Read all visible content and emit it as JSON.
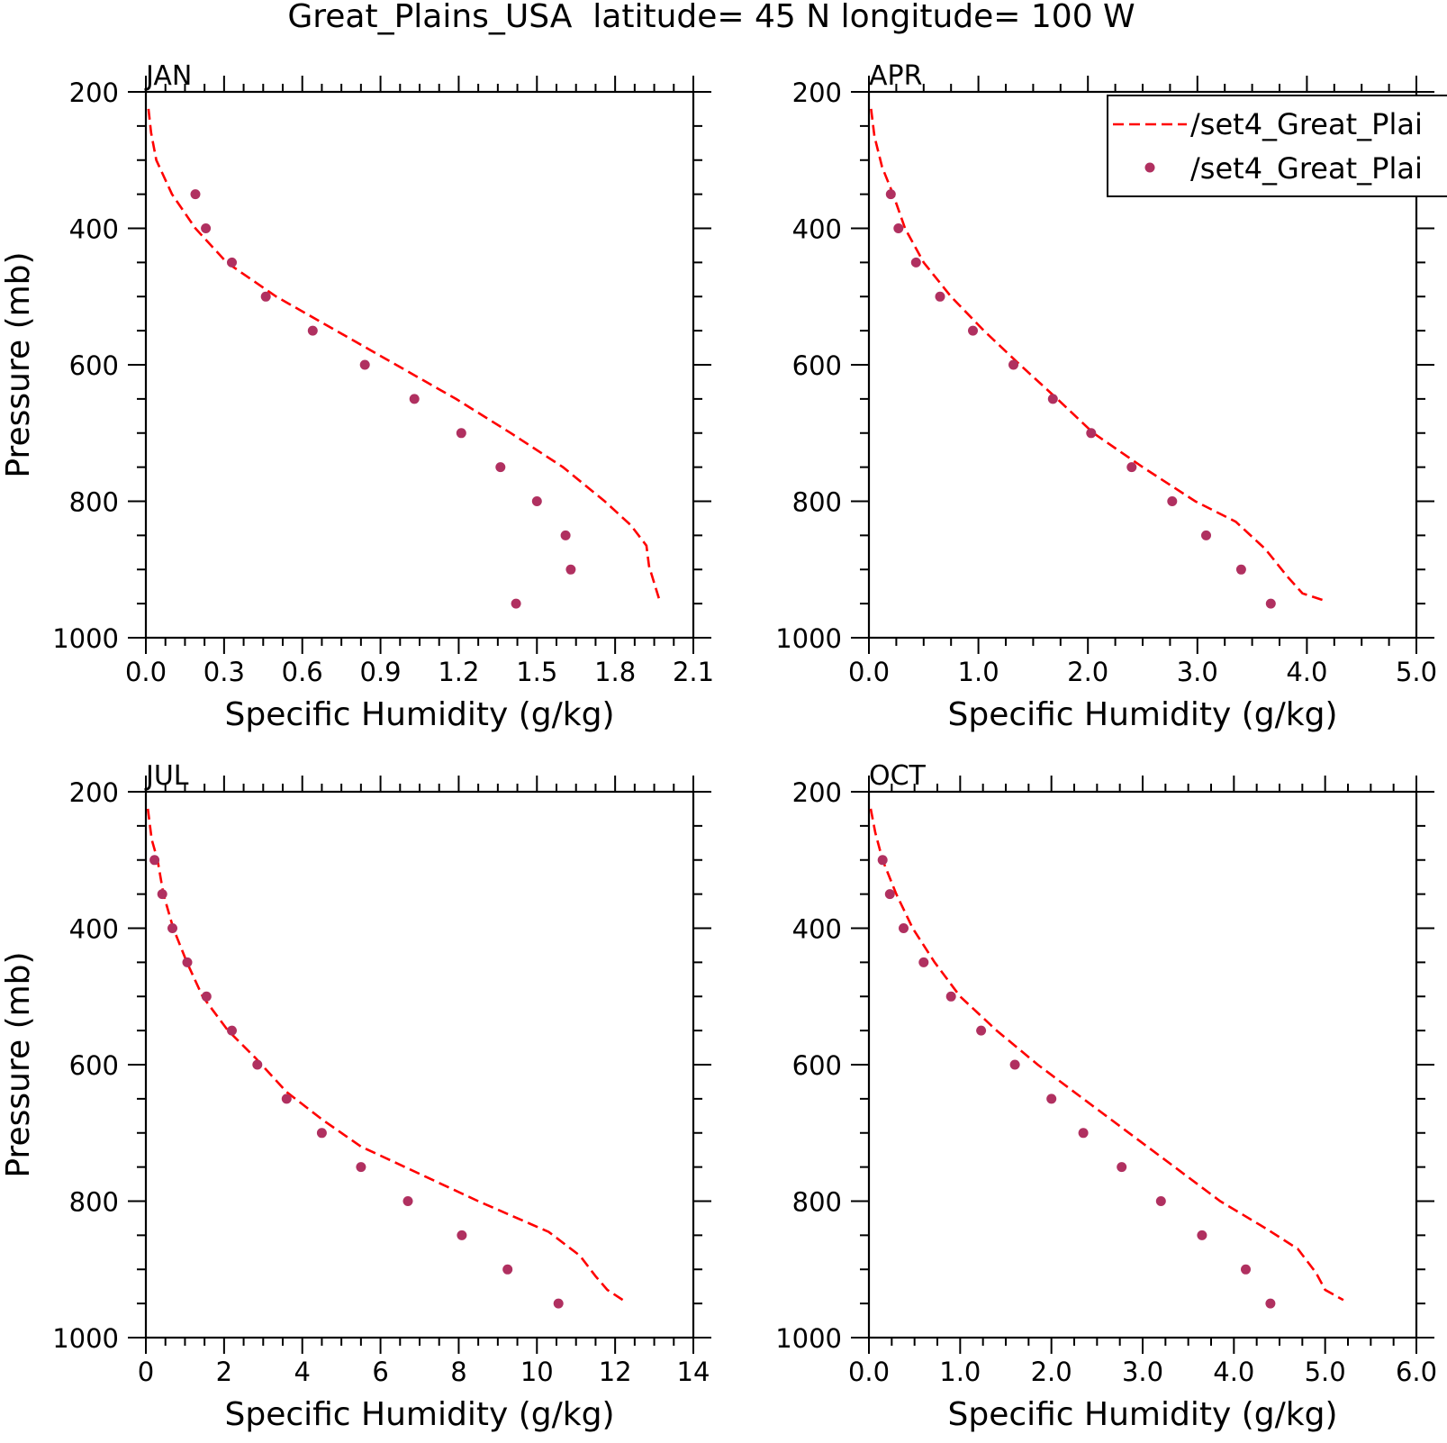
{
  "title": "Great_Plains_USA  latitude= 45 N longitude= 100 W",
  "legend": {
    "entries": [
      {
        "label": "/set4_Great_Plai",
        "style": "dashed-line",
        "color": "#ff0000"
      },
      {
        "label": "/set4_Great_Plai",
        "style": "dots",
        "color": "#b03060"
      }
    ],
    "placement": "top-right of APR panel (clipped at right edge)"
  },
  "colors": {
    "line": "#ff0000",
    "dots": "#b03060",
    "axes": "#000000"
  },
  "chart_data": [
    {
      "type": "line",
      "panel_label": "JAN",
      "xlabel": "Specific Humidity (g/kg)",
      "ylabel": "Pressure (mb)",
      "xlim": [
        0,
        2.1
      ],
      "ylim": [
        1000,
        200
      ],
      "y_inverted": true,
      "x_ticks": [
        "0.0",
        "0.3",
        "0.6",
        "0.9",
        "1.2",
        "1.5",
        "1.8",
        "2.1"
      ],
      "y_ticks": [
        "200",
        "400",
        "600",
        "800",
        "1000"
      ],
      "series": [
        {
          "style": "dashed-line",
          "points": [
            [
              0.01,
              225
            ],
            [
              0.02,
              260
            ],
            [
              0.04,
              300
            ],
            [
              0.1,
              350
            ],
            [
              0.19,
              400
            ],
            [
              0.31,
              450
            ],
            [
              0.5,
              500
            ],
            [
              0.73,
              550
            ],
            [
              0.96,
              600
            ],
            [
              1.19,
              650
            ],
            [
              1.4,
              700
            ],
            [
              1.6,
              750
            ],
            [
              1.76,
              800
            ],
            [
              1.86,
              835
            ],
            [
              1.92,
              865
            ],
            [
              1.93,
              895
            ],
            [
              1.95,
              920
            ],
            [
              1.97,
              945
            ]
          ]
        },
        {
          "style": "dots",
          "points": [
            [
              0.19,
              350
            ],
            [
              0.23,
              400
            ],
            [
              0.33,
              450
            ],
            [
              0.46,
              500
            ],
            [
              0.64,
              550
            ],
            [
              0.84,
              600
            ],
            [
              1.03,
              650
            ],
            [
              1.21,
              700
            ],
            [
              1.36,
              750
            ],
            [
              1.5,
              800
            ],
            [
              1.61,
              850
            ],
            [
              1.63,
              900
            ],
            [
              1.42,
              950
            ]
          ]
        }
      ]
    },
    {
      "type": "line",
      "panel_label": "APR",
      "xlabel": "Specific Humidity (g/kg)",
      "ylabel": "",
      "xlim": [
        0,
        5
      ],
      "ylim": [
        1000,
        200
      ],
      "y_inverted": true,
      "x_ticks": [
        "0.0",
        "1.0",
        "2.0",
        "3.0",
        "4.0",
        "5.0"
      ],
      "y_ticks": [
        "200",
        "400",
        "600",
        "800",
        "1000"
      ],
      "series": [
        {
          "style": "dashed-line",
          "points": [
            [
              0.02,
              225
            ],
            [
              0.05,
              265
            ],
            [
              0.12,
              310
            ],
            [
              0.22,
              350
            ],
            [
              0.33,
              400
            ],
            [
              0.5,
              450
            ],
            [
              0.75,
              500
            ],
            [
              1.05,
              550
            ],
            [
              1.38,
              600
            ],
            [
              1.72,
              650
            ],
            [
              2.05,
              700
            ],
            [
              2.5,
              750
            ],
            [
              2.98,
              800
            ],
            [
              3.35,
              830
            ],
            [
              3.62,
              870
            ],
            [
              3.82,
              910
            ],
            [
              3.96,
              935
            ],
            [
              4.15,
              945
            ]
          ]
        },
        {
          "style": "dots",
          "points": [
            [
              0.2,
              350
            ],
            [
              0.27,
              400
            ],
            [
              0.43,
              450
            ],
            [
              0.65,
              500
            ],
            [
              0.95,
              550
            ],
            [
              1.32,
              600
            ],
            [
              1.68,
              650
            ],
            [
              2.03,
              700
            ],
            [
              2.4,
              750
            ],
            [
              2.77,
              800
            ],
            [
              3.08,
              850
            ],
            [
              3.4,
              900
            ],
            [
              3.67,
              950
            ]
          ]
        }
      ]
    },
    {
      "type": "line",
      "panel_label": "JUL",
      "xlabel": "Specific Humidity (g/kg)",
      "ylabel": "Pressure (mb)",
      "xlim": [
        0,
        14
      ],
      "ylim": [
        1000,
        200
      ],
      "y_inverted": true,
      "x_ticks": [
        "0",
        "2",
        "4",
        "6",
        "8",
        "10",
        "12",
        "14"
      ],
      "y_ticks": [
        "200",
        "400",
        "600",
        "800",
        "1000"
      ],
      "series": [
        {
          "style": "dashed-line",
          "points": [
            [
              0.05,
              225
            ],
            [
              0.15,
              270
            ],
            [
              0.3,
              300
            ],
            [
              0.45,
              350
            ],
            [
              0.7,
              400
            ],
            [
              1.05,
              450
            ],
            [
              1.45,
              500
            ],
            [
              2.1,
              550
            ],
            [
              2.8,
              590
            ],
            [
              3.6,
              640
            ],
            [
              4.5,
              680
            ],
            [
              5.5,
              720
            ],
            [
              7.0,
              760
            ],
            [
              8.5,
              800
            ],
            [
              10.3,
              845
            ],
            [
              11.1,
              880
            ],
            [
              11.5,
              910
            ],
            [
              11.8,
              930
            ],
            [
              12.2,
              945
            ]
          ]
        },
        {
          "style": "dots",
          "points": [
            [
              0.22,
              300
            ],
            [
              0.42,
              350
            ],
            [
              0.68,
              400
            ],
            [
              1.06,
              450
            ],
            [
              1.55,
              500
            ],
            [
              2.2,
              550
            ],
            [
              2.85,
              600
            ],
            [
              3.6,
              650
            ],
            [
              4.5,
              700
            ],
            [
              5.5,
              750
            ],
            [
              6.7,
              800
            ],
            [
              8.08,
              850
            ],
            [
              9.25,
              900
            ],
            [
              10.55,
              950
            ]
          ]
        }
      ]
    },
    {
      "type": "line",
      "panel_label": "OCT",
      "xlabel": "Specific Humidity (g/kg)",
      "ylabel": "",
      "xlim": [
        0,
        6
      ],
      "ylim": [
        1000,
        200
      ],
      "y_inverted": true,
      "x_ticks": [
        "0.0",
        "1.0",
        "2.0",
        "3.0",
        "4.0",
        "5.0",
        "6.0"
      ],
      "y_ticks": [
        "200",
        "400",
        "600",
        "800",
        "1000"
      ],
      "series": [
        {
          "style": "dashed-line",
          "points": [
            [
              0.02,
              225
            ],
            [
              0.07,
              260
            ],
            [
              0.15,
              300
            ],
            [
              0.3,
              350
            ],
            [
              0.48,
              400
            ],
            [
              0.72,
              450
            ],
            [
              1.0,
              500
            ],
            [
              1.4,
              550
            ],
            [
              1.85,
              600
            ],
            [
              2.35,
              650
            ],
            [
              2.85,
              700
            ],
            [
              3.35,
              750
            ],
            [
              3.85,
              800
            ],
            [
              4.35,
              840
            ],
            [
              4.7,
              870
            ],
            [
              4.9,
              905
            ],
            [
              5.0,
              930
            ],
            [
              5.2,
              945
            ]
          ]
        },
        {
          "style": "dots",
          "points": [
            [
              0.15,
              300
            ],
            [
              0.23,
              350
            ],
            [
              0.38,
              400
            ],
            [
              0.6,
              450
            ],
            [
              0.9,
              500
            ],
            [
              1.23,
              550
            ],
            [
              1.6,
              600
            ],
            [
              2.0,
              650
            ],
            [
              2.35,
              700
            ],
            [
              2.77,
              750
            ],
            [
              3.2,
              800
            ],
            [
              3.65,
              850
            ],
            [
              4.13,
              900
            ],
            [
              4.4,
              950
            ]
          ]
        }
      ]
    }
  ]
}
